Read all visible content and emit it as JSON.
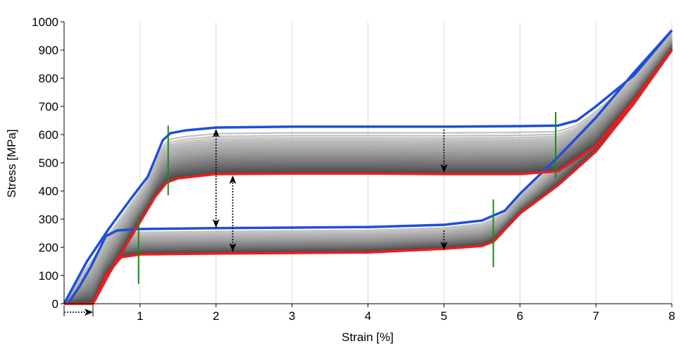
{
  "chart_data": {
    "type": "line",
    "xlabel": "Strain [%]",
    "ylabel": "Stress [MPa]",
    "xlim": [
      0,
      8
    ],
    "ylim": [
      0,
      1000
    ],
    "x_ticks": [
      1,
      2,
      3,
      4,
      5,
      6,
      7,
      8
    ],
    "y_ticks": [
      0,
      100,
      200,
      300,
      400,
      500,
      600,
      700,
      800,
      900,
      1000
    ],
    "grid": "vertical",
    "colors": {
      "first_cycle": "#1f4fd6",
      "last_cycle": "#ee1c1c",
      "intermediate_cycles": "#888888",
      "markers": "#1a8a1a",
      "arrows": "#000000"
    },
    "series": [
      {
        "role": "first_cycle",
        "color": "#1f4fd6",
        "loading": [
          [
            0.0,
            0
          ],
          [
            0.3,
            150
          ],
          [
            0.6,
            270
          ],
          [
            0.9,
            380
          ],
          [
            1.1,
            450
          ],
          [
            1.3,
            580
          ],
          [
            1.4,
            605
          ],
          [
            1.6,
            615
          ],
          [
            2.0,
            625
          ],
          [
            3.0,
            628
          ],
          [
            4.0,
            628
          ],
          [
            5.0,
            628
          ],
          [
            6.0,
            630
          ],
          [
            6.5,
            632
          ],
          [
            6.75,
            650
          ],
          [
            7.0,
            700
          ],
          [
            7.5,
            810
          ],
          [
            8.0,
            970
          ]
        ],
        "unloading": [
          [
            8.0,
            970
          ],
          [
            7.5,
            820
          ],
          [
            7.0,
            660
          ],
          [
            6.5,
            520
          ],
          [
            6.0,
            390
          ],
          [
            5.8,
            330
          ],
          [
            5.5,
            295
          ],
          [
            5.0,
            280
          ],
          [
            4.0,
            272
          ],
          [
            3.0,
            270
          ],
          [
            2.0,
            268
          ],
          [
            1.0,
            265
          ],
          [
            0.7,
            260
          ],
          [
            0.55,
            240
          ],
          [
            0.35,
            130
          ],
          [
            0.2,
            60
          ],
          [
            0.05,
            0
          ]
        ]
      },
      {
        "role": "last_cycle",
        "color": "#ee1c1c",
        "loading": [
          [
            0.0,
            0
          ],
          [
            0.38,
            0
          ],
          [
            0.6,
            110
          ],
          [
            1.0,
            290
          ],
          [
            1.2,
            380
          ],
          [
            1.35,
            430
          ],
          [
            1.5,
            445
          ],
          [
            2.0,
            460
          ],
          [
            3.0,
            462
          ],
          [
            4.0,
            462
          ],
          [
            5.0,
            460
          ],
          [
            6.0,
            460
          ],
          [
            6.5,
            470
          ],
          [
            7.0,
            560
          ],
          [
            7.5,
            720
          ],
          [
            8.0,
            900
          ]
        ],
        "unloading": [
          [
            8.0,
            900
          ],
          [
            7.5,
            710
          ],
          [
            7.0,
            540
          ],
          [
            6.5,
            420
          ],
          [
            6.0,
            320
          ],
          [
            5.65,
            220
          ],
          [
            5.5,
            205
          ],
          [
            5.0,
            195
          ],
          [
            4.0,
            182
          ],
          [
            3.0,
            180
          ],
          [
            2.0,
            178
          ],
          [
            1.0,
            175
          ],
          [
            0.75,
            165
          ],
          [
            0.55,
            100
          ],
          [
            0.38,
            0
          ]
        ]
      }
    ],
    "markers": [
      {
        "x": 1.37,
        "y_range": [
          385,
          632
        ]
      },
      {
        "x": 0.98,
        "y_range": [
          70,
          312
        ]
      },
      {
        "x": 6.47,
        "y_range": [
          445,
          680
        ]
      },
      {
        "x": 5.65,
        "y_range": [
          130,
          370
        ]
      }
    ],
    "arrows": [
      {
        "type": "double",
        "x": 2.0,
        "y_from": 270,
        "y_to": 620
      },
      {
        "type": "double",
        "x": 2.22,
        "y_from": 185,
        "y_to": 455
      },
      {
        "type": "single",
        "x": 5.0,
        "y_from": 618,
        "y_to": 465
      },
      {
        "type": "single",
        "x": 5.0,
        "y_from": 260,
        "y_to": 190
      },
      {
        "type": "single",
        "x_from": 0.0,
        "x_to": 0.38,
        "y": -30
      }
    ],
    "intermediate_cycles": 40
  }
}
